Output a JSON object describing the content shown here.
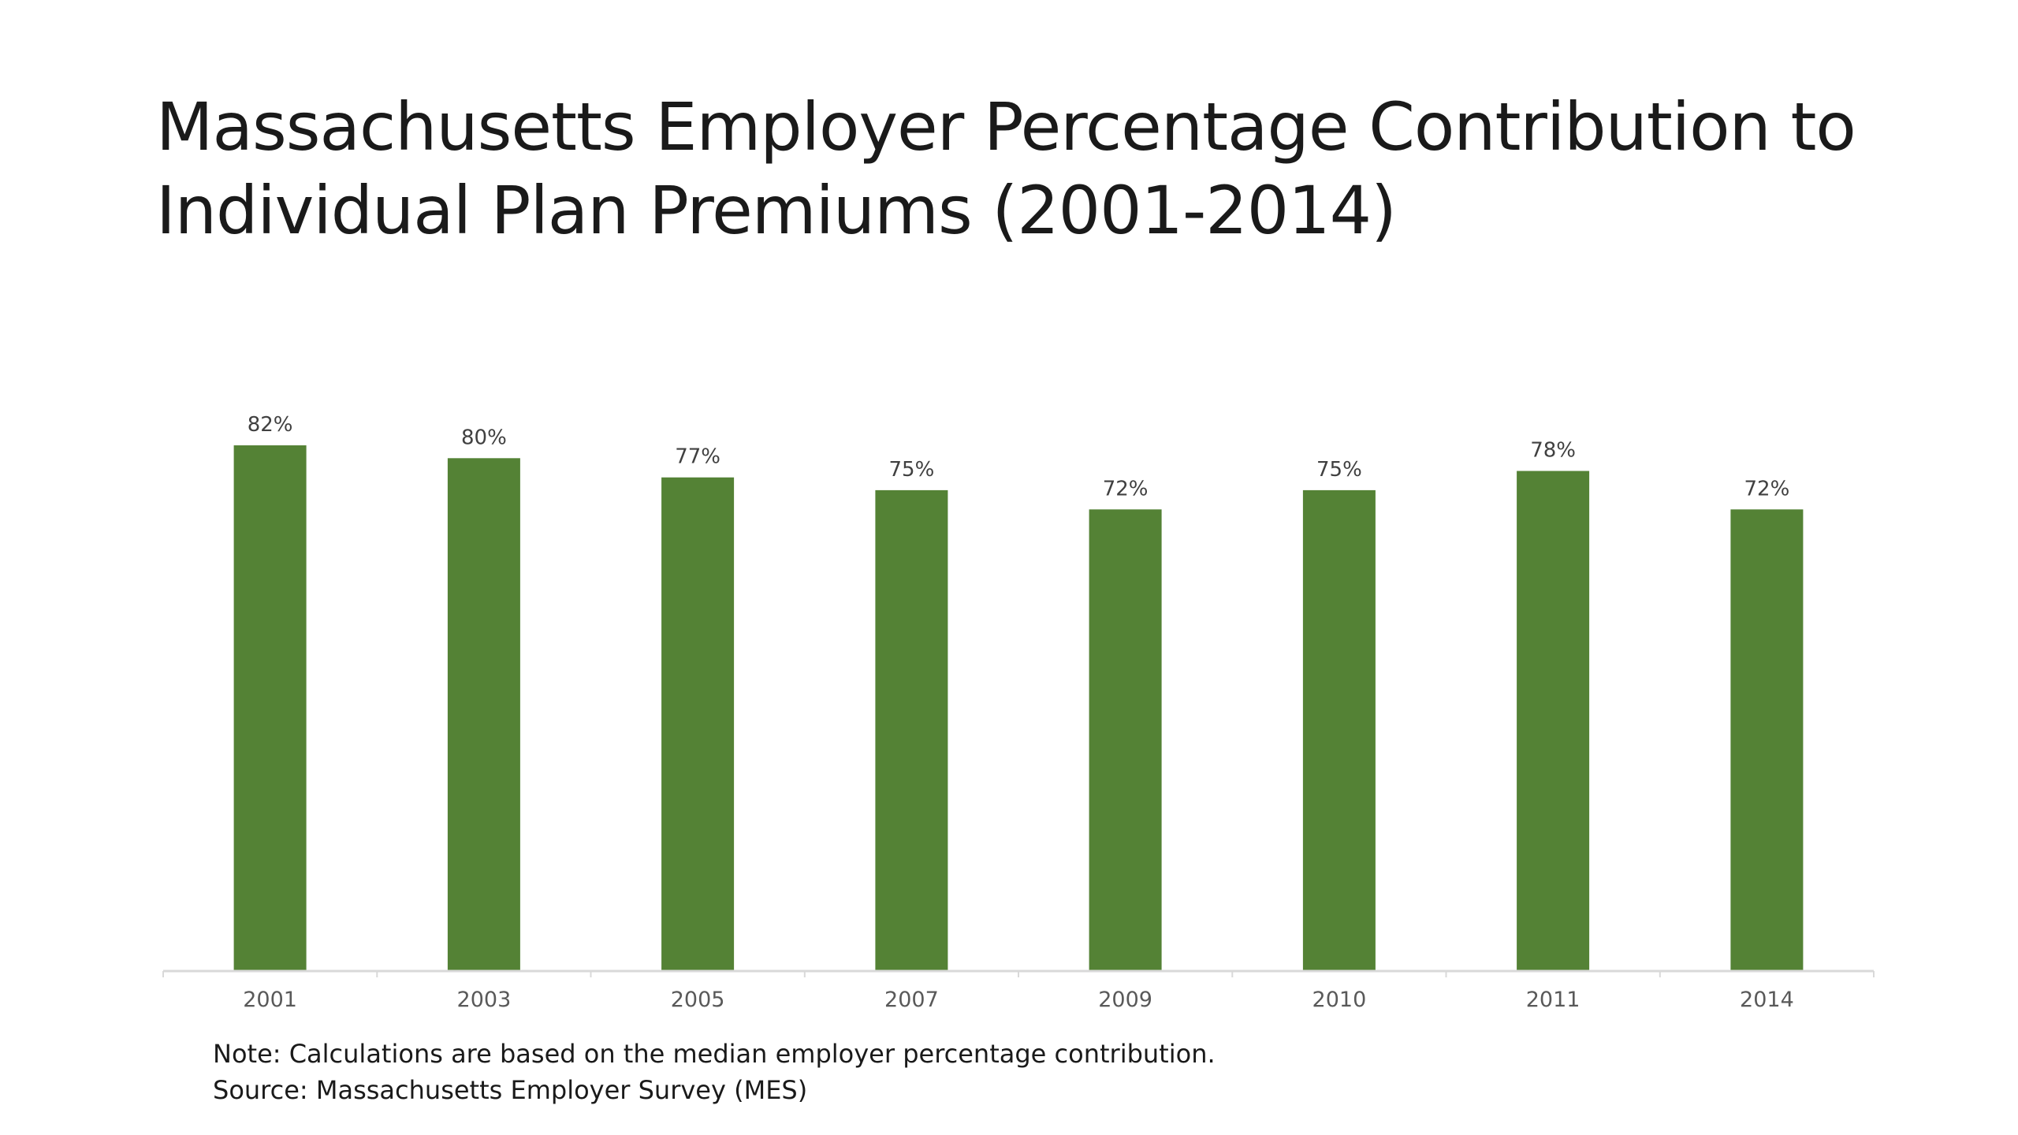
{
  "slide": {
    "title_line1": "Massachusetts Employer Percentage Contribution to",
    "title_line2": "Individual Plan Premiums (2001-2014)",
    "note": "Note: Calculations are based on the median employer percentage contribution.",
    "source": "Source: Massachusetts Employer Survey (MES)"
  },
  "colors": {
    "bar": "#548235",
    "axis": "#d9d9d9"
  },
  "chart_data": {
    "type": "bar",
    "categories": [
      "2001",
      "2003",
      "2005",
      "2007",
      "2009",
      "2010",
      "2011",
      "2014"
    ],
    "values": [
      82,
      80,
      77,
      75,
      72,
      75,
      78,
      72
    ],
    "data_labels": [
      "82%",
      "80%",
      "77%",
      "75%",
      "72%",
      "75%",
      "78%",
      "72%"
    ],
    "unit": "%",
    "ylim": [
      0,
      82
    ],
    "grid": false,
    "legend": "none"
  }
}
